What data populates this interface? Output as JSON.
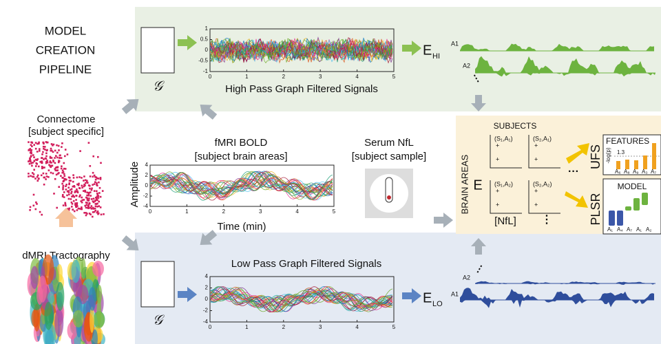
{
  "title": [
    "MODEL",
    "CREATION",
    "PIPELINE"
  ],
  "connectome": {
    "title": "Connectome",
    "subtitle": "[subject specific]"
  },
  "tractography": {
    "title": "dMRI Tractography"
  },
  "graph_symbol": "𝒢",
  "high_pass": {
    "title": "High Pass Graph Filtered Signals",
    "yticks": [
      1,
      0.5,
      0,
      -0.5,
      -1
    ],
    "xticks": [
      0,
      1,
      2,
      3,
      4,
      5
    ],
    "energy": "E",
    "energy_sub": "HI",
    "areas": [
      "A1",
      "A2"
    ]
  },
  "bold": {
    "title": "fMRI BOLD",
    "subtitle": "[subject brain areas]",
    "ylabel": "Amplitude",
    "xlabel": "Time (min)",
    "yticks": [
      4,
      2,
      0,
      -2,
      -4
    ],
    "xticks": [
      0,
      1,
      2,
      3,
      4,
      5
    ]
  },
  "serum": {
    "title": "Serum NfL",
    "subtitle": "[subject sample]"
  },
  "low_pass": {
    "title": "Low Pass Graph Filtered Signals",
    "yticks": [
      4,
      2,
      0,
      -2,
      -4
    ],
    "xticks": [
      0,
      1,
      2,
      3,
      4,
      5
    ],
    "energy": "E",
    "energy_sub": "LO",
    "areas": [
      "A2",
      "A1"
    ]
  },
  "analysis": {
    "title": "SUBJECTS",
    "ylabel": "BRAIN AREAS",
    "y": "E",
    "x": "[NfL]",
    "cells": [
      "(S₁,A₁)",
      "(S₂,A₁)",
      "(S₁,A₂)",
      "(S₂,A₂)"
    ]
  },
  "ufs": "UFS",
  "plsr": "PLSR",
  "features": {
    "title": "FEATURES",
    "ylabel": "-log(p)",
    "threshold": 1.3,
    "labels": [
      "A₆",
      "A₈",
      "A₉",
      "A₃",
      "A₇"
    ]
  },
  "model": {
    "title": "MODEL",
    "labels": [
      "A₁",
      "A₄",
      "A₇",
      "A₁",
      "A₂"
    ]
  }
}
